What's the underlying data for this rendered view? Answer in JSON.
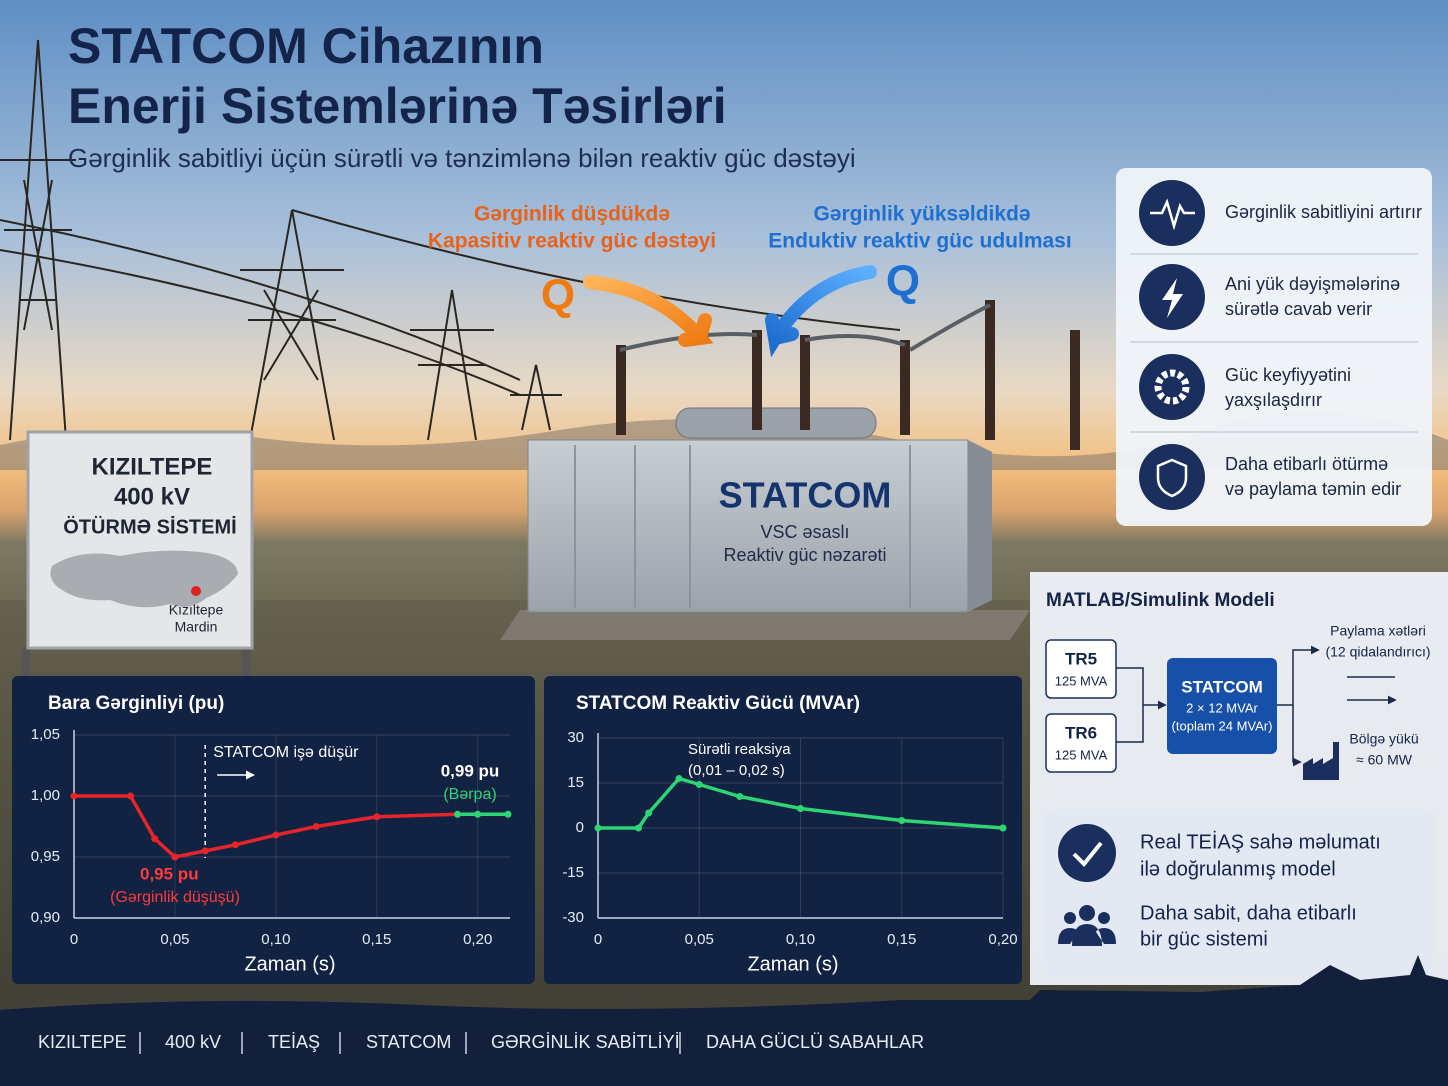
{
  "header": {
    "title_lines": [
      "STATCOM Cihazının",
      "Enerji Sistemlərinə Təsirləri"
    ],
    "subtitle": "Gərginlik sabitliyi üçün sürətli və tənzimlənə bilən reaktiv güc dəstəyi"
  },
  "flows": {
    "left": {
      "lines": [
        "Gərginlik düşdükdə",
        "Kapasitiv reaktiv güc dəstəyi"
      ],
      "symbol": "Q"
    },
    "right": {
      "lines": [
        "Gərginlik yüksəldikdə",
        "Enduktiv reaktiv güc udulması"
      ],
      "symbol": "Q"
    }
  },
  "device": {
    "name": "STATCOM",
    "lines": [
      "VSC əsaslı",
      "Reaktiv güc nəzarəti"
    ]
  },
  "sign": {
    "lines": [
      "KIZILTEPE",
      "400 kV",
      "ÖTÜRMƏ SİSTEMİ"
    ],
    "place": [
      "Kızıltepe",
      "Mardin"
    ]
  },
  "benefits": [
    {
      "lines": [
        "Gərginlik sabitliyini artırır"
      ]
    },
    {
      "lines": [
        "Ani yük dəyişmələrinə",
        "sürətlə cavab verir"
      ]
    },
    {
      "lines": [
        "Güc keyfiyyətini",
        "yaxşılaşdırır"
      ]
    },
    {
      "lines": [
        "Daha etibarlı ötürmə",
        "və paylama təmin edir"
      ]
    }
  ],
  "model": {
    "title": "MATLAB/Simulink Modeli",
    "transformers": [
      {
        "name": "TR5",
        "rating": "125 MVA"
      },
      {
        "name": "TR6",
        "rating": "125 MVA"
      }
    ],
    "statcom": {
      "name": "STATCOM",
      "lines": [
        "2 × 12 MVAr",
        "(toplam 24 MVAr)"
      ]
    },
    "feeders": [
      "Paylama xətləri",
      "(12 qidalandırıcı)"
    ],
    "load": [
      "Bölgə yükü",
      "≈ 60 MW"
    ]
  },
  "validation": [
    {
      "lines": [
        "Real TEİAŞ sahə məlumatı",
        "ilə doğrulanmış model"
      ]
    },
    {
      "lines": [
        "Daha sabit, daha etibarlı",
        "bir güc sistemi"
      ]
    }
  ],
  "footer": [
    "KIZILTEPE",
    "400 kV",
    "TEİAŞ",
    "STATCOM",
    "GƏRGİNLİK SABİTLİYİ",
    "DAHA GÜCLÜ SABAHLAR"
  ],
  "chart_data": [
    {
      "type": "line",
      "title": "Bara Gərginliyi (pu)",
      "x_label": "Zaman (s)",
      "xlim": [
        0,
        0.216
      ],
      "xticks": [
        0,
        {
          "value": 0.05,
          "label": "0,05"
        },
        {
          "value": 0.1,
          "label": "0,10"
        },
        {
          "value": 0.15,
          "label": "0,15"
        },
        {
          "value": 0.2,
          "label": "0,20"
        }
      ],
      "ylim": [
        0.9,
        1.05
      ],
      "yticks": [
        {
          "value": 0.9,
          "label": "0,90"
        },
        {
          "value": 0.95,
          "label": "0,95"
        },
        {
          "value": 1.0,
          "label": "1,00"
        },
        {
          "value": 1.05,
          "label": "1,05"
        }
      ],
      "grid": true,
      "series": [
        {
          "name": "Gərginlik",
          "color": "#e5252a",
          "x": [
            0,
            0.028,
            0.04,
            0.05,
            0.065,
            0.08,
            0.1,
            0.12,
            0.15,
            0.19
          ],
          "values": [
            1.0,
            1.0,
            0.965,
            0.95,
            0.955,
            0.96,
            0.968,
            0.975,
            0.983,
            0.985
          ]
        },
        {
          "name": "Bərpa",
          "color": "#2ed573",
          "x": [
            0.19,
            0.2,
            0.215
          ],
          "values": [
            0.985,
            0.985,
            0.985
          ]
        }
      ],
      "annotations": [
        {
          "text": "STATCOM işə düşür",
          "x": 0.065,
          "color": "#ffffff"
        },
        {
          "text": "0,95 pu",
          "color": "#ff3b3b"
        },
        {
          "text": "(Gərginlik düşüşü)",
          "color": "#ff3b3b"
        },
        {
          "text": "0,99 pu",
          "color": "#ffffff"
        },
        {
          "text": "(Bərpa)",
          "color": "#2ed573"
        }
      ]
    },
    {
      "type": "line",
      "title": "STATCOM Reaktiv Gücü (MVAr)",
      "x_label": "Zaman (s)",
      "xlim": [
        0,
        0.2
      ],
      "xticks": [
        0,
        {
          "value": 0.05,
          "label": "0,05"
        },
        {
          "value": 0.1,
          "label": "0,10"
        },
        {
          "value": 0.15,
          "label": "0,15"
        },
        {
          "value": 0.2,
          "label": "0,20"
        }
      ],
      "ylim": [
        -30,
        30
      ],
      "yticks": [
        -30,
        -15,
        0,
        15,
        30
      ],
      "grid": true,
      "series": [
        {
          "name": "Reaktiv güc",
          "color": "#2ed573",
          "x": [
            0,
            0.02,
            0.025,
            0.04,
            0.05,
            0.07,
            0.1,
            0.15,
            0.2
          ],
          "values": [
            0,
            0,
            5,
            16.5,
            14.5,
            10.5,
            6.5,
            2.5,
            0
          ]
        }
      ],
      "annotations": [
        {
          "text": "Sürətli reaksiya",
          "color": "#ffffff"
        },
        {
          "text": "(0,01 – 0,02 s)",
          "color": "#ffffff"
        }
      ]
    }
  ]
}
